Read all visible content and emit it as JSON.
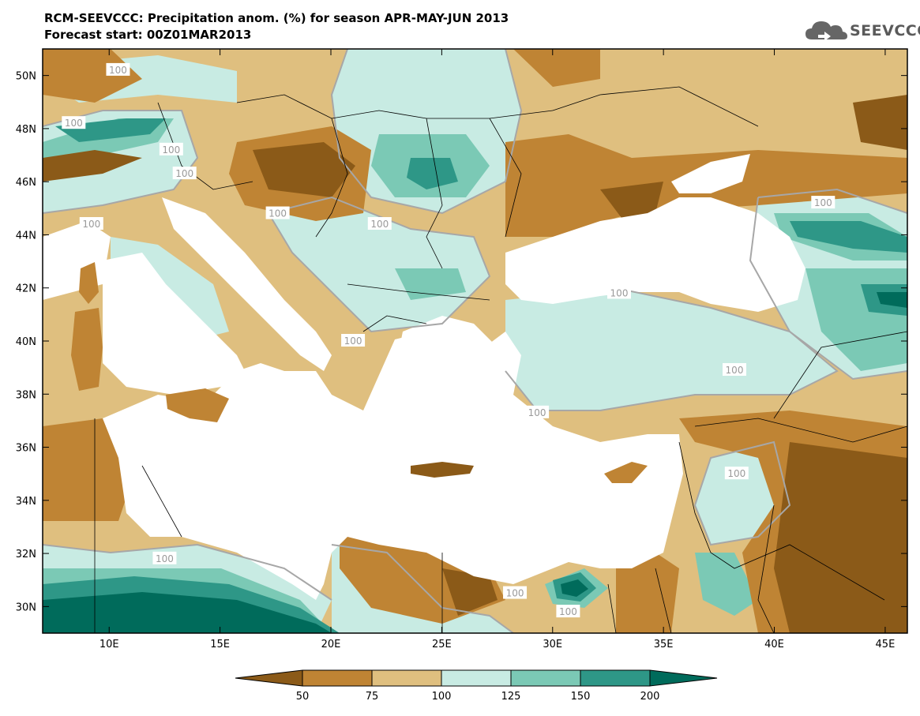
{
  "title": {
    "line1": "RCM-SEEVCCC: Precipitation anom. (%) for season APR-MAY-JUN 2013",
    "line2": "Forecast start: 00Z01MAR2013"
  },
  "logo": {
    "text": "SEEVCCC",
    "icon": "cloud-icon"
  },
  "map": {
    "lon_range": [
      7,
      46
    ],
    "lat_range": [
      29,
      51
    ],
    "x_ticks": [
      {
        "value": 10,
        "label": "10E"
      },
      {
        "value": 15,
        "label": "15E"
      },
      {
        "value": 20,
        "label": "20E"
      },
      {
        "value": 25,
        "label": "25E"
      },
      {
        "value": 30,
        "label": "30E"
      },
      {
        "value": 35,
        "label": "35E"
      },
      {
        "value": 40,
        "label": "40E"
      },
      {
        "value": 45,
        "label": "45E"
      }
    ],
    "y_ticks": [
      {
        "value": 50,
        "label": "50N"
      },
      {
        "value": 48,
        "label": "48N"
      },
      {
        "value": 46,
        "label": "46N"
      },
      {
        "value": 44,
        "label": "44N"
      },
      {
        "value": 42,
        "label": "42N"
      },
      {
        "value": 40,
        "label": "40N"
      },
      {
        "value": 38,
        "label": "38N"
      },
      {
        "value": 36,
        "label": "36N"
      },
      {
        "value": 34,
        "label": "34N"
      },
      {
        "value": 32,
        "label": "32N"
      },
      {
        "value": 30,
        "label": "30N"
      }
    ],
    "contour_labels": [
      {
        "text": "100",
        "lon": 10.4,
        "lat": 50.2
      },
      {
        "text": "100",
        "lon": 8.4,
        "lat": 48.2
      },
      {
        "text": "100",
        "lon": 12.8,
        "lat": 47.2
      },
      {
        "text": "100",
        "lon": 13.4,
        "lat": 46.3
      },
      {
        "text": "100",
        "lon": 9.2,
        "lat": 44.4
      },
      {
        "text": "100",
        "lon": 17.6,
        "lat": 44.8
      },
      {
        "text": "100",
        "lon": 22.2,
        "lat": 44.4
      },
      {
        "text": "100",
        "lon": 21.0,
        "lat": 40.0
      },
      {
        "text": "100",
        "lon": 33.0,
        "lat": 41.8
      },
      {
        "text": "100",
        "lon": 42.2,
        "lat": 45.2
      },
      {
        "text": "100",
        "lon": 38.2,
        "lat": 38.9
      },
      {
        "text": "100",
        "lon": 29.3,
        "lat": 37.3
      },
      {
        "text": "100",
        "lon": 38.3,
        "lat": 35.0
      },
      {
        "text": "100",
        "lon": 12.5,
        "lat": 31.8
      },
      {
        "text": "100",
        "lon": 28.3,
        "lat": 30.5
      },
      {
        "text": "100",
        "lon": 30.7,
        "lat": 29.8
      }
    ]
  },
  "colorbar": {
    "labels": [
      "50",
      "75",
      "100",
      "125",
      "150",
      "200"
    ],
    "colors": [
      "#8b5a18",
      "#bf8434",
      "#dfbf7f",
      "#c8ebe3",
      "#7bc9b5",
      "#2e9787",
      "#006b5b"
    ]
  },
  "palette": {
    "dry_strong": "#8b5a18",
    "dry": "#bf8434",
    "dry_light": "#dfbf7f",
    "wet_light": "#c8ebe3",
    "wet": "#7bc9b5",
    "wet_strong": "#2e9787",
    "wet_max": "#006b5b"
  }
}
